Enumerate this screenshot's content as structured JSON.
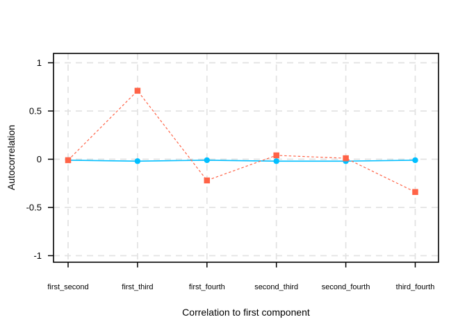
{
  "figure": {
    "background": "#FFFFFF"
  },
  "chart_data": {
    "type": "line",
    "title": "",
    "xlabel": "Correlation to first component",
    "ylabel": "Autocorrelation",
    "categories": [
      "first_second",
      "first_third",
      "first_fourth",
      "second_third",
      "second_fourth",
      "third_fourth"
    ],
    "series": [
      {
        "name": "series-2-circles-solid",
        "color": "#00BFFF",
        "marker": "circle",
        "line_style": "solid",
        "values": [
          -0.01,
          -0.02,
          -0.01,
          -0.02,
          -0.02,
          -0.01
        ]
      },
      {
        "name": "series-1-squares-dashed",
        "color": "#FF6347",
        "marker": "square",
        "line_style": "dashed",
        "values": [
          -0.01,
          0.71,
          -0.22,
          0.04,
          0.01,
          -0.34
        ]
      }
    ],
    "y_tick_labels": [
      "1",
      "0.5",
      "0",
      "-0.5",
      "-1"
    ],
    "y_tick_values": [
      1,
      0.5,
      0,
      -0.5,
      -1
    ],
    "ylim": [
      -1.07,
      1.1
    ],
    "legend_position": "none",
    "grid": {
      "style": "dashed",
      "color": "#E2E2E2"
    },
    "panel_border_color": "#000000",
    "tick_color": "#000000",
    "text_color": "#000000"
  }
}
